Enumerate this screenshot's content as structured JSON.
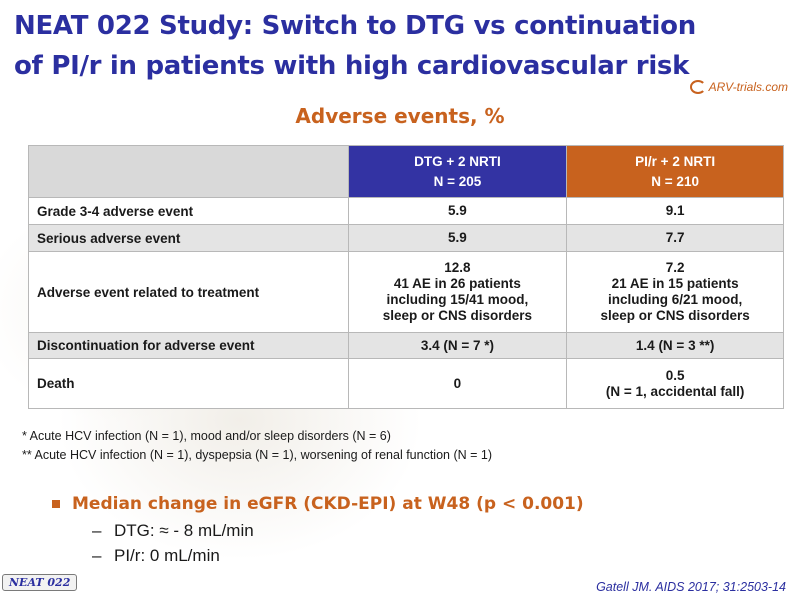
{
  "slide": {
    "title_line1": "NEAT 022 Study: Switch to DTG vs continuation",
    "title_line2": "of PI/r in patients with high cardiovascular risk",
    "logo_text": "ARV-trials.com",
    "subtitle": "Adverse events, %",
    "badge": "NEAT 022",
    "citation": "Gatell JM. AIDS 2017; 31:2503-14"
  },
  "table": {
    "columns": [
      {
        "line1": "DTG + 2 NRTI",
        "line2": "N = 205"
      },
      {
        "line1": "PI/r + 2 NRTI",
        "line2": "N = 210"
      }
    ],
    "rows": [
      {
        "label": "Grade 3-4 adverse event",
        "dtg": [
          "5.9"
        ],
        "pir": [
          "9.1"
        ]
      },
      {
        "label": "Serious adverse event",
        "dtg": [
          "5.9"
        ],
        "pir": [
          "7.7"
        ]
      },
      {
        "label": "Adverse event related to treatment",
        "dtg": [
          "12.8",
          "41 AE in 26 patients",
          "including 15/41 mood,",
          "sleep or CNS disorders"
        ],
        "pir": [
          "7.2",
          "21 AE in 15 patients",
          "including 6/21 mood,",
          "sleep or CNS disorders"
        ]
      },
      {
        "label": "Discontinuation for adverse event",
        "dtg": [
          "3.4 (N = 7 *)"
        ],
        "pir": [
          "1.4 (N = 3 **)"
        ]
      },
      {
        "label": "Death",
        "dtg": [
          "0"
        ],
        "pir": [
          "0.5",
          "(N = 1, accidental fall)"
        ]
      }
    ]
  },
  "footnotes": [
    "* Acute HCV infection (N = 1), mood and/or sleep disorders (N = 6)",
    "** Acute HCV infection (N = 1), dyspepsia (N = 1), worsening of renal function (N = 1)"
  ],
  "bullet": {
    "main": "Median change in eGFR (CKD-EPI) at W48 (p < 0.001)",
    "subs": [
      {
        "dash": "–",
        "text": "DTG: ≈ - 8 mL/min"
      },
      {
        "dash": "–",
        "text": "PI/r: 0 mL/min"
      }
    ]
  },
  "colors": {
    "title": "#2b2fa0",
    "accent": "#c8621e",
    "dtg_header": "#3333a3",
    "pir_header": "#c8621e"
  }
}
